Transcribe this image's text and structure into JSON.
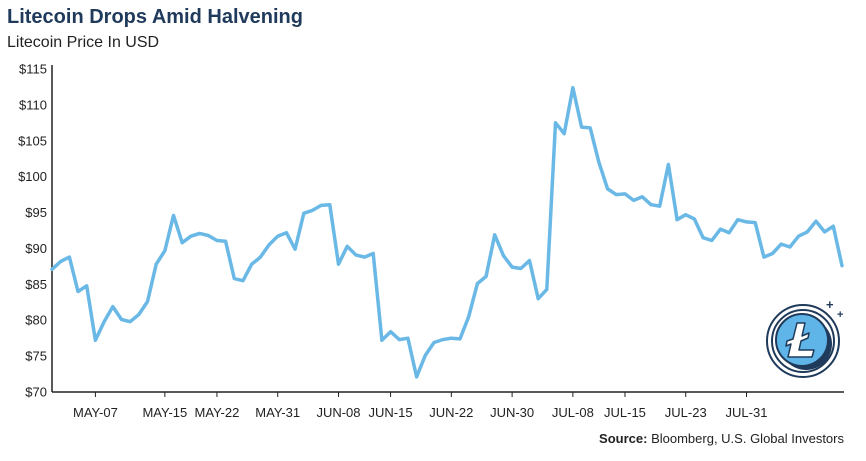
{
  "header": {
    "title": "Litecoin Drops Amid Halvening",
    "subtitle": "Litecoin Price In USD"
  },
  "footer": {
    "source_label": "Source:",
    "source_text": "Bloomberg, U.S. Global Investors"
  },
  "colors": {
    "line": "#6ab8e6",
    "axis": "#222222",
    "logo_dark": "#1f3a5a",
    "logo_fill": "#5fb4e8"
  },
  "icons": [
    "litecoin-logo-icon"
  ],
  "chart_data": {
    "type": "line",
    "title": "Litecoin Drops Amid Halvening",
    "subtitle": "Litecoin Price In USD",
    "xlabel": "",
    "ylabel": "",
    "ylim": [
      70,
      115
    ],
    "y_ticks": [
      70,
      75,
      80,
      85,
      90,
      95,
      100,
      105,
      110,
      115
    ],
    "y_tick_labels": [
      "$70",
      "$75",
      "$80",
      "$85",
      "$90",
      "$95",
      "$100",
      "$105",
      "$110",
      "$115"
    ],
    "x_ticks": [
      {
        "label": "MAY-07",
        "index": 5
      },
      {
        "label": "MAY-15",
        "index": 13
      },
      {
        "label": "MAY-22",
        "index": 19
      },
      {
        "label": "MAY-31",
        "index": 26
      },
      {
        "label": "JUN-08",
        "index": 33
      },
      {
        "label": "JUN-15",
        "index": 39
      },
      {
        "label": "JUN-22",
        "index": 46
      },
      {
        "label": "JUN-30",
        "index": 53
      },
      {
        "label": "JUL-08",
        "index": 60
      },
      {
        "label": "JUL-15",
        "index": 66
      },
      {
        "label": "JUL-23",
        "index": 73
      },
      {
        "label": "JUL-31",
        "index": 80
      }
    ],
    "grid": false,
    "series": [
      {
        "values": [
          87.1,
          88.2,
          88.8,
          84.0,
          84.8,
          77.2,
          79.8,
          81.9,
          80.1,
          79.8,
          80.8,
          82.6,
          87.8,
          89.7,
          94.6,
          90.8,
          91.7,
          92.1,
          91.8,
          91.1,
          91.0,
          85.8,
          85.5,
          87.8,
          88.8,
          90.5,
          91.7,
          92.2,
          89.9,
          94.9,
          95.3,
          96.0,
          96.1,
          87.8,
          90.3,
          89.1,
          88.8,
          89.3,
          77.2,
          78.4,
          77.3,
          77.5,
          72.1,
          75.1,
          76.9,
          77.3,
          77.5,
          77.4,
          80.5,
          85.1,
          86.1,
          91.9,
          89.0,
          87.4,
          87.2,
          88.3,
          83.0,
          84.3,
          107.5,
          106.0,
          112.4,
          106.9,
          106.8,
          102.0,
          98.3,
          97.5,
          97.6,
          96.7,
          97.2,
          96.1,
          95.9,
          101.7,
          94.0,
          94.7,
          94.1,
          91.5,
          91.1,
          92.7,
          92.2,
          94.0,
          93.7,
          93.6,
          88.8,
          89.3,
          90.6,
          90.2,
          91.7,
          92.3,
          93.8,
          92.3,
          93.1,
          87.6
        ]
      }
    ]
  }
}
